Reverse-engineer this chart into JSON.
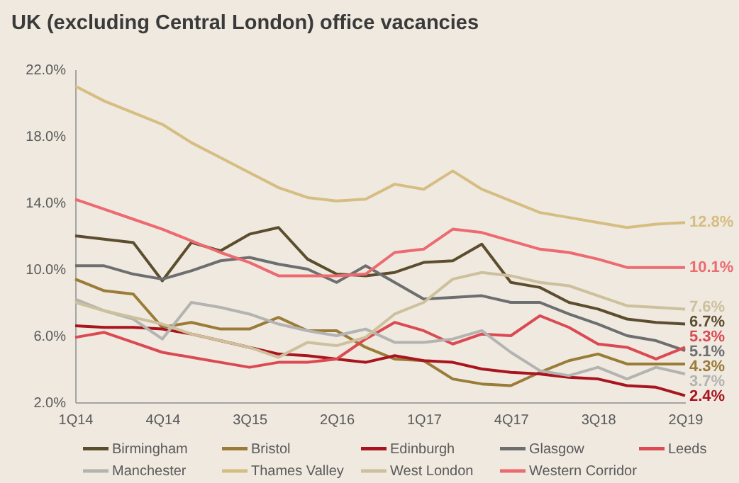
{
  "chart_data": {
    "type": "line",
    "title": "UK (excluding Central London) office vacancies",
    "categories": [
      "1Q14",
      null,
      null,
      "4Q14",
      null,
      null,
      "3Q15",
      null,
      null,
      "2Q16",
      null,
      null,
      "1Q17",
      null,
      null,
      "4Q17",
      null,
      null,
      "3Q18",
      null,
      null,
      "2Q19"
    ],
    "ylim": [
      2,
      22
    ],
    "yticks": [
      {
        "value": 2,
        "label": "2.0%"
      },
      {
        "value": 6,
        "label": "6.0%"
      },
      {
        "value": 10,
        "label": "10.0%"
      },
      {
        "value": 14,
        "label": "14.0%"
      },
      {
        "value": 18,
        "label": "18.0%"
      },
      {
        "value": 22,
        "label": "22.0%"
      }
    ],
    "legend": "bottom",
    "line_style": "solid",
    "series": [
      {
        "name": "Birmingham",
        "color": "#5c4d2e",
        "values": [
          12.0,
          11.8,
          11.6,
          9.3,
          11.6,
          11.1,
          12.1,
          12.5,
          10.6,
          9.7,
          9.6,
          9.8,
          10.4,
          10.5,
          11.5,
          9.2,
          8.9,
          8.0,
          7.6,
          7.0,
          6.8,
          6.7
        ],
        "value_labels": [
          null,
          null,
          null,
          null,
          null,
          null,
          null,
          null,
          null,
          null,
          null,
          null,
          null,
          null,
          null,
          null,
          null,
          null,
          null,
          null,
          null,
          "6.7%"
        ]
      },
      {
        "name": "Bristol",
        "color": "#9a7b38",
        "values": [
          9.4,
          8.7,
          8.5,
          6.5,
          6.8,
          6.4,
          6.4,
          7.1,
          6.3,
          6.3,
          5.3,
          4.6,
          4.5,
          3.4,
          3.1,
          3.0,
          3.8,
          4.5,
          4.9,
          4.3,
          4.3,
          4.3
        ],
        "value_labels": [
          null,
          null,
          null,
          null,
          null,
          null,
          null,
          null,
          null,
          null,
          null,
          null,
          null,
          null,
          null,
          null,
          null,
          null,
          null,
          null,
          null,
          "4.3%"
        ]
      },
      {
        "name": "Edinburgh",
        "color": "#a8151e",
        "values": [
          6.6,
          6.5,
          6.5,
          6.4,
          6.1,
          5.7,
          5.3,
          4.9,
          4.8,
          4.6,
          4.4,
          4.8,
          4.5,
          4.4,
          4.0,
          3.8,
          3.7,
          3.5,
          3.4,
          3.0,
          2.9,
          2.4
        ],
        "value_labels": [
          null,
          null,
          null,
          null,
          null,
          null,
          null,
          null,
          null,
          null,
          null,
          null,
          null,
          null,
          null,
          null,
          null,
          null,
          null,
          null,
          null,
          "2.4%"
        ]
      },
      {
        "name": "Glasgow",
        "color": "#6d6e70",
        "values": [
          10.2,
          10.2,
          9.7,
          9.4,
          9.9,
          10.5,
          10.7,
          10.3,
          10.0,
          9.2,
          10.2,
          9.2,
          8.2,
          8.3,
          8.4,
          8.0,
          8.0,
          7.3,
          6.7,
          6.0,
          5.7,
          5.1
        ],
        "value_labels": [
          null,
          null,
          null,
          null,
          null,
          null,
          null,
          null,
          null,
          null,
          null,
          null,
          null,
          null,
          null,
          null,
          null,
          null,
          null,
          null,
          null,
          "5.1%"
        ]
      },
      {
        "name": "Leeds",
        "color": "#db4a52",
        "values": [
          5.9,
          6.2,
          5.6,
          5.0,
          4.7,
          4.4,
          4.1,
          4.4,
          4.4,
          4.6,
          5.8,
          6.8,
          6.3,
          5.5,
          6.1,
          6.0,
          7.2,
          6.5,
          5.5,
          5.3,
          4.6,
          5.3
        ],
        "value_labels": [
          null,
          null,
          null,
          null,
          null,
          null,
          null,
          null,
          null,
          null,
          null,
          null,
          null,
          null,
          null,
          null,
          null,
          null,
          null,
          null,
          null,
          "5.3%"
        ]
      },
      {
        "name": "Manchester",
        "color": "#b3b3b1",
        "values": [
          8.2,
          7.5,
          7.0,
          5.8,
          8.0,
          7.7,
          7.3,
          6.7,
          6.3,
          6.0,
          6.4,
          5.6,
          5.6,
          5.8,
          6.3,
          5.0,
          3.9,
          3.6,
          4.1,
          3.4,
          4.1,
          3.7
        ],
        "value_labels": [
          null,
          null,
          null,
          null,
          null,
          null,
          null,
          null,
          null,
          null,
          null,
          null,
          null,
          null,
          null,
          null,
          null,
          null,
          null,
          null,
          null,
          "3.7%"
        ]
      },
      {
        "name": "Thames Valley",
        "color": "#d6bd82",
        "values": [
          21.0,
          20.1,
          19.4,
          18.7,
          17.6,
          16.7,
          15.8,
          14.9,
          14.3,
          14.1,
          14.2,
          15.1,
          14.8,
          15.9,
          14.8,
          14.1,
          13.4,
          13.1,
          12.8,
          12.5,
          12.7,
          12.8
        ],
        "value_labels": [
          null,
          null,
          null,
          null,
          null,
          null,
          null,
          null,
          null,
          null,
          null,
          null,
          null,
          null,
          null,
          null,
          null,
          null,
          null,
          null,
          null,
          "12.8%"
        ]
      },
      {
        "name": "West London",
        "color": "#cdc09c",
        "values": [
          8.0,
          7.5,
          7.1,
          6.7,
          6.1,
          5.7,
          5.3,
          4.7,
          5.6,
          5.4,
          5.9,
          7.3,
          8.0,
          9.4,
          9.8,
          9.6,
          9.2,
          9.0,
          8.4,
          7.8,
          7.7,
          7.6
        ],
        "value_labels": [
          null,
          null,
          null,
          null,
          null,
          null,
          null,
          null,
          null,
          null,
          null,
          null,
          null,
          null,
          null,
          null,
          null,
          null,
          null,
          null,
          null,
          "7.6%"
        ]
      },
      {
        "name": "Western Corridor",
        "color": "#ec6a70",
        "values": [
          14.2,
          13.6,
          13.0,
          12.4,
          11.7,
          11.0,
          10.4,
          9.6,
          9.6,
          9.6,
          9.7,
          11.0,
          11.2,
          12.4,
          12.2,
          11.7,
          11.2,
          11.0,
          10.6,
          10.1,
          10.1,
          10.1
        ],
        "value_labels": [
          null,
          null,
          null,
          null,
          null,
          null,
          null,
          null,
          null,
          null,
          null,
          null,
          null,
          null,
          null,
          null,
          null,
          null,
          null,
          null,
          null,
          "10.1%"
        ]
      }
    ]
  }
}
